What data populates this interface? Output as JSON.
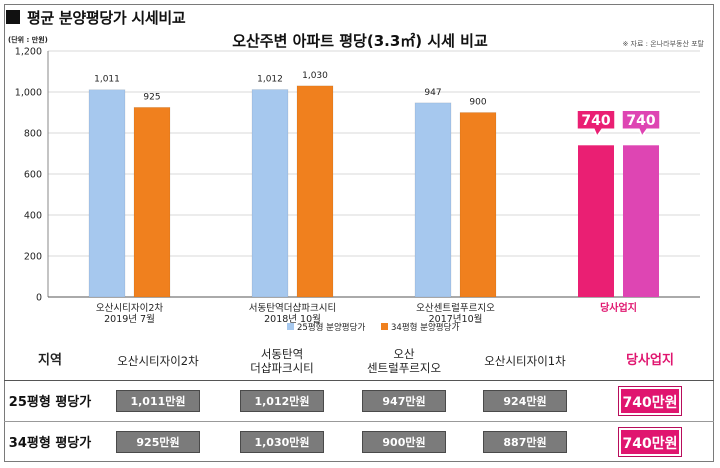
{
  "heading": "평균 분양평당가 시세비교",
  "chart_data": {
    "type": "bar",
    "title": "오산주변 아파트 평당(3.3㎡) 시세 비교",
    "source_note": "※ 자료 : 온나라부동산 포탈",
    "unit_label": "(단위 : 만원)",
    "ylim": [
      0,
      1200
    ],
    "yticks": [
      "0",
      "200",
      "400",
      "600",
      "800",
      "1,000",
      "1,200"
    ],
    "grid": true,
    "legend_position": "bottom",
    "categories": [
      [
        "오산시티자이2차",
        "2019년 7월"
      ],
      [
        "서동탄역더샵파크시티",
        "2018년 10월"
      ],
      [
        "오산센트럴푸르지오",
        "2017년10월"
      ],
      [
        "당사업지"
      ]
    ],
    "series": [
      {
        "name": "25평형 분양평당가",
        "color": "#a6c8ee",
        "values": [
          1011,
          1012,
          947,
          740
        ],
        "labels": [
          "1,011",
          "1,012",
          "947",
          "740"
        ]
      },
      {
        "name": "34평형 분양평당가",
        "color": "#f0801e",
        "values": [
          925,
          1030,
          900,
          740
        ],
        "labels": [
          "925",
          "1,030",
          "900",
          "740"
        ]
      }
    ],
    "highlight": {
      "category_index": 3,
      "label_color": "#e0156f",
      "bar_colors": [
        "#ea1f73",
        "#de45b3"
      ]
    }
  },
  "table": {
    "corner": "지역",
    "columns": [
      [
        "오산시티자이2차"
      ],
      [
        "서동탄역",
        "더샵파크시티"
      ],
      [
        "오산",
        "센트럴푸르지오"
      ],
      [
        "오산시티자이1차"
      ],
      [
        "당사업지"
      ]
    ],
    "rows": [
      {
        "label": "25평형 평당가",
        "values": [
          "1,011만원",
          "1,012만원",
          "947만원",
          "924만원",
          "740만원"
        ]
      },
      {
        "label": "34평형 평당가",
        "values": [
          "925만원",
          "1,030만원",
          "900만원",
          "887만원",
          "740만원"
        ]
      }
    ]
  }
}
